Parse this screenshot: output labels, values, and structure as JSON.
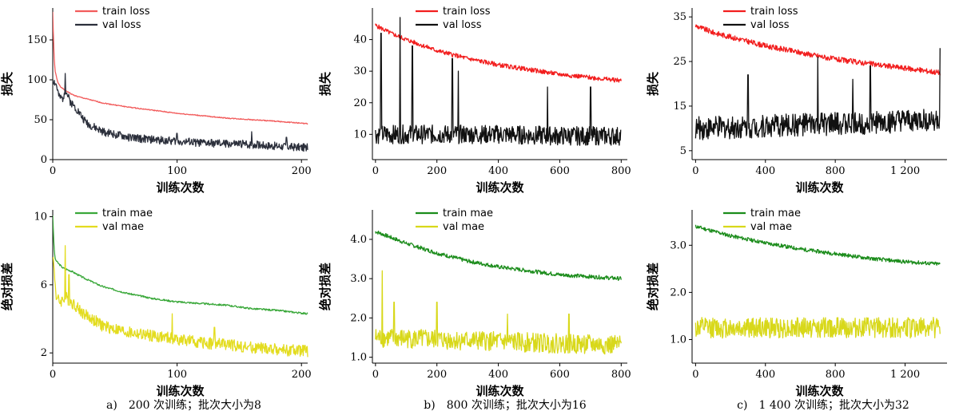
{
  "figure": {
    "captions": [
      "a)　200 次训练；批次大小为8",
      "b)　800 次训练；批次大小为16",
      "c)　1 400 次训练；批次大小为32"
    ]
  },
  "chart_data": [
    {
      "type": "line",
      "panel": "a-top",
      "xlabel": "训练次数",
      "ylabel": "损失",
      "xlim": [
        0,
        205
      ],
      "ylim": [
        0,
        190
      ],
      "xticks": [
        0,
        100,
        200
      ],
      "xtick_labels": [
        "0",
        "100",
        "200"
      ],
      "yticks": [
        0,
        50,
        100,
        150
      ],
      "ytick_labels": [
        "0",
        "50",
        "100",
        "150"
      ],
      "legend": "top-left",
      "grid": false,
      "series": [
        {
          "name": "train loss",
          "color": "#f25c5c",
          "noise": 0.6,
          "seed": 1,
          "x": [
            0,
            1,
            2,
            4,
            7,
            10,
            15,
            20,
            30,
            40,
            60,
            80,
            100,
            120,
            140,
            160,
            180,
            205
          ],
          "y": [
            185,
            130,
            110,
            97,
            90,
            87,
            82,
            79,
            75,
            71,
            66,
            62,
            58,
            55,
            52,
            50,
            48,
            45
          ]
        },
        {
          "name": "val loss",
          "color": "#2b2f3b",
          "noise": 5,
          "seed": 2,
          "spikes": [
            [
              10,
              108
            ],
            [
              45,
              38
            ],
            [
              100,
              33
            ],
            [
              160,
              35
            ],
            [
              188,
              28
            ]
          ],
          "x": [
            0,
            3,
            5,
            8,
            10,
            14,
            20,
            25,
            30,
            40,
            60,
            80,
            100,
            120,
            140,
            160,
            180,
            205
          ],
          "y": [
            100,
            93,
            78,
            76,
            88,
            73,
            62,
            50,
            43,
            35,
            28,
            25,
            23,
            21,
            20,
            19,
            17,
            15
          ]
        }
      ]
    },
    {
      "type": "line",
      "panel": "a-bottom",
      "xlabel": "训练次数",
      "ylabel": "绝对损差",
      "xlim": [
        0,
        205
      ],
      "ylim": [
        1.4,
        10.4
      ],
      "xticks": [
        0,
        100,
        200
      ],
      "xtick_labels": [
        "0",
        "100",
        "200"
      ],
      "yticks": [
        2,
        6,
        10
      ],
      "ytick_labels": [
        "2",
        "6",
        "10"
      ],
      "legend": "top-left",
      "grid": false,
      "series": [
        {
          "name": "train mae",
          "color": "#3aa83a",
          "noise": 0.05,
          "seed": 3,
          "x": [
            0,
            1,
            2,
            4,
            8,
            15,
            25,
            40,
            60,
            80,
            100,
            120,
            140,
            160,
            180,
            205
          ],
          "y": [
            10.1,
            8.2,
            7.5,
            7.3,
            7.0,
            6.8,
            6.4,
            5.9,
            5.5,
            5.2,
            5.0,
            4.9,
            4.8,
            4.6,
            4.5,
            4.3
          ]
        },
        {
          "name": "val mae",
          "color": "#e3dc1f",
          "noise": 0.35,
          "seed": 4,
          "spikes": [
            [
              10,
              8.3
            ],
            [
              13,
              6.6
            ],
            [
              96,
              4.3
            ],
            [
              130,
              3.5
            ]
          ],
          "x": [
            0,
            3,
            6,
            10,
            15,
            25,
            40,
            60,
            80,
            100,
            120,
            140,
            160,
            180,
            205
          ],
          "y": [
            7.8,
            5.2,
            5.0,
            5.3,
            5.0,
            4.3,
            3.6,
            3.2,
            3.0,
            2.8,
            2.6,
            2.5,
            2.3,
            2.2,
            2.1
          ]
        }
      ]
    },
    {
      "type": "line",
      "panel": "b-top",
      "xlabel": "训练次数",
      "ylabel": "损失",
      "xlim": [
        -10,
        820
      ],
      "ylim": [
        2,
        50
      ],
      "xticks": [
        0,
        200,
        400,
        600,
        800
      ],
      "xtick_labels": [
        "0",
        "200",
        "400",
        "600",
        "800"
      ],
      "yticks": [
        10,
        20,
        30,
        40
      ],
      "ytick_labels": [
        "10",
        "20",
        "30",
        "40"
      ],
      "legend": "top-center",
      "grid": false,
      "series": [
        {
          "name": "train loss",
          "color": "#f21e1e",
          "noise": 0.7,
          "seed": 5,
          "x": [
            0,
            50,
            100,
            200,
            300,
            400,
            500,
            600,
            700,
            800
          ],
          "y": [
            44.5,
            42,
            40,
            36.5,
            34,
            32,
            30.5,
            29,
            28,
            27
          ]
        },
        {
          "name": "val loss",
          "color": "#111111",
          "noise": 3,
          "seed": 6,
          "spikes": [
            [
              18,
              42
            ],
            [
              80,
              47
            ],
            [
              120,
              38
            ],
            [
              250,
              34
            ],
            [
              270,
              30
            ],
            [
              560,
              25
            ],
            [
              700,
              25
            ]
          ],
          "x": [
            0,
            200,
            400,
            600,
            800
          ],
          "y": [
            10,
            10,
            10,
            9.5,
            9.5
          ]
        }
      ]
    },
    {
      "type": "line",
      "panel": "b-bottom",
      "xlabel": "训练次数",
      "ylabel": "绝对损差",
      "xlim": [
        -10,
        820
      ],
      "ylim": [
        0.85,
        4.75
      ],
      "xticks": [
        0,
        200,
        400,
        600,
        800
      ],
      "xtick_labels": [
        "0",
        "200",
        "400",
        "600",
        "800"
      ],
      "yticks": [
        1.0,
        2.0,
        3.0,
        4.0
      ],
      "ytick_labels": [
        "1.0",
        "2.0",
        "3.0",
        "4.0"
      ],
      "legend": "top-center",
      "grid": false,
      "series": [
        {
          "name": "train mae",
          "color": "#1b8c1b",
          "noise": 0.05,
          "seed": 7,
          "x": [
            0,
            50,
            100,
            200,
            300,
            400,
            500,
            600,
            700,
            800
          ],
          "y": [
            4.2,
            4.05,
            3.9,
            3.65,
            3.45,
            3.3,
            3.2,
            3.1,
            3.05,
            3.0
          ]
        },
        {
          "name": "val mae",
          "color": "#d8d81a",
          "noise": 0.25,
          "seed": 8,
          "spikes": [
            [
              22,
              3.2
            ],
            [
              60,
              2.4
            ],
            [
              200,
              2.4
            ],
            [
              430,
              2.1
            ],
            [
              630,
              2.1
            ]
          ],
          "x": [
            0,
            200,
            400,
            600,
            800
          ],
          "y": [
            1.5,
            1.45,
            1.4,
            1.35,
            1.3
          ]
        }
      ]
    },
    {
      "type": "line",
      "panel": "c-top",
      "xlabel": "训练次数",
      "ylabel": "损失",
      "xlim": [
        -20,
        1440
      ],
      "ylim": [
        3,
        37
      ],
      "xticks": [
        0,
        400,
        800,
        1200
      ],
      "xtick_labels": [
        "0",
        "400",
        "800",
        "1 200"
      ],
      "yticks": [
        5,
        15,
        25,
        35
      ],
      "ytick_labels": [
        "5",
        "15",
        "25",
        "35"
      ],
      "legend": "top-center",
      "grid": false,
      "series": [
        {
          "name": "train loss",
          "color": "#f21e1e",
          "noise": 0.6,
          "seed": 9,
          "x": [
            0,
            100,
            200,
            400,
            600,
            800,
            1000,
            1200,
            1400
          ],
          "y": [
            33,
            31.5,
            30.5,
            28.5,
            27,
            25.5,
            24.5,
            23.5,
            22.5
          ]
        },
        {
          "name": "val loss",
          "color": "#111111",
          "noise": 2.6,
          "seed": 10,
          "spikes": [
            [
              300,
              22
            ],
            [
              700,
              26
            ],
            [
              900,
              21
            ],
            [
              1000,
              24
            ],
            [
              1400,
              28
            ]
          ],
          "x": [
            0,
            400,
            800,
            1200,
            1400
          ],
          "y": [
            10,
            10.5,
            11,
            11.5,
            12
          ]
        }
      ]
    },
    {
      "type": "line",
      "panel": "c-bottom",
      "xlabel": "训练次数",
      "ylabel": "绝对损差",
      "xlim": [
        -20,
        1440
      ],
      "ylim": [
        0.5,
        3.75
      ],
      "xticks": [
        0,
        400,
        800,
        1200
      ],
      "xtick_labels": [
        "0",
        "400",
        "800",
        "1 200"
      ],
      "yticks": [
        1.0,
        2.0,
        3.0
      ],
      "ytick_labels": [
        "1.0",
        "2.0",
        "3.0"
      ],
      "legend": "top-center",
      "grid": false,
      "series": [
        {
          "name": "train mae",
          "color": "#1b8c1b",
          "noise": 0.04,
          "seed": 11,
          "x": [
            0,
            200,
            400,
            600,
            800,
            1000,
            1200,
            1400
          ],
          "y": [
            3.4,
            3.2,
            3.05,
            2.92,
            2.82,
            2.72,
            2.65,
            2.6
          ]
        },
        {
          "name": "val mae",
          "color": "#d8d81a",
          "noise": 0.22,
          "seed": 12,
          "x": [
            0,
            400,
            800,
            1200,
            1400
          ],
          "y": [
            1.25,
            1.25,
            1.25,
            1.25,
            1.25
          ]
        }
      ]
    }
  ]
}
